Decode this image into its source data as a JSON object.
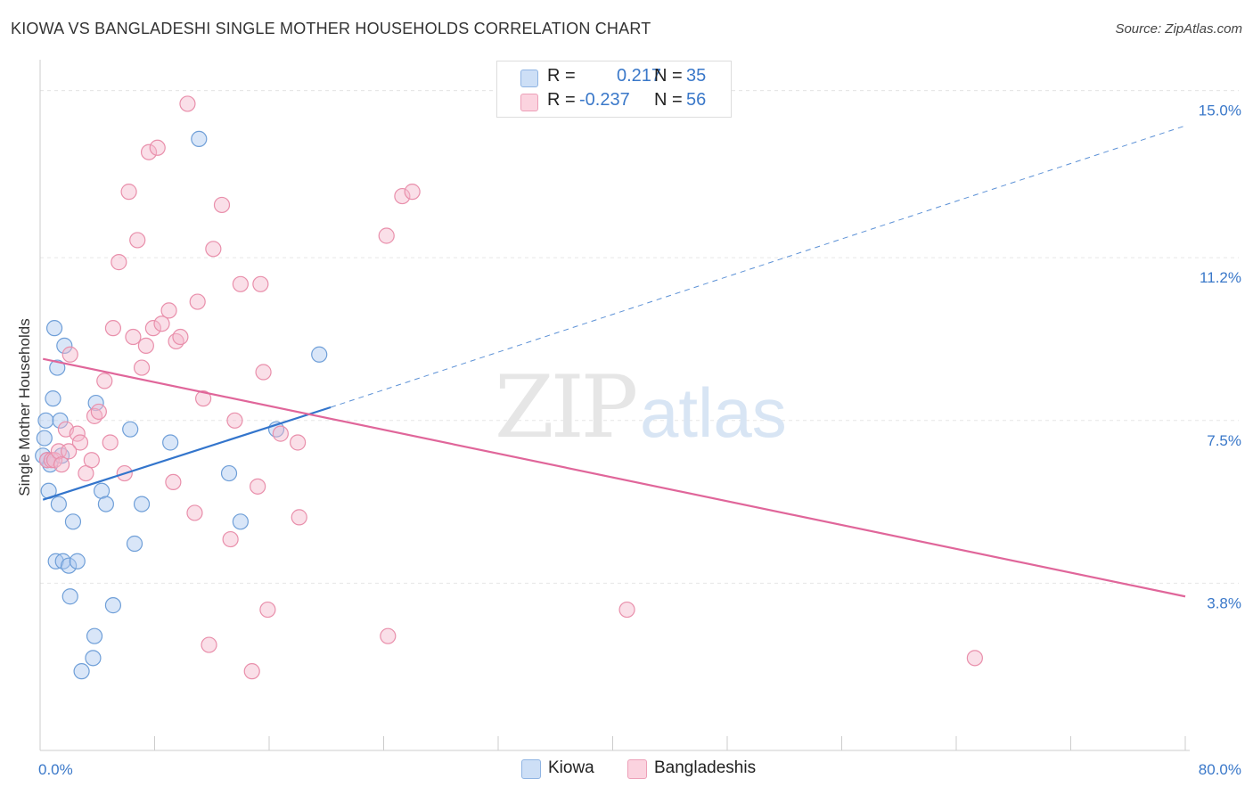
{
  "header": {
    "title": "KIOWA VS BANGLADESHI SINGLE MOTHER HOUSEHOLDS CORRELATION CHART",
    "source": "Source: ZipAtlas.com"
  },
  "watermark": {
    "zip": "ZIP",
    "atlas": "atlas"
  },
  "legend": {
    "rows": [
      {
        "r_label": "R =",
        "r_value": "0.217",
        "n_label": "N =",
        "n_value": "35",
        "color": "#aac8ef"
      },
      {
        "r_label": "R =",
        "r_value": "-0.237",
        "n_label": "N =",
        "n_value": "56",
        "color": "#f5b8cb"
      }
    ]
  },
  "bottom_legend": [
    {
      "label": "Kiowa",
      "color": "#aac8ef"
    },
    {
      "label": "Bangladeshis",
      "color": "#f5b8cb"
    }
  ],
  "chart_data": {
    "type": "scatter",
    "title": "KIOWA VS BANGLADESHI SINGLE MOTHER HOUSEHOLDS CORRELATION CHART",
    "xlabel": "",
    "ylabel": "Single Mother Households",
    "xlim": [
      0,
      80
    ],
    "ylim": [
      0,
      15.6
    ],
    "x_tick_labels": [
      "0.0%",
      "80.0%"
    ],
    "y_tick_labels": [
      "3.8%",
      "7.5%",
      "11.2%",
      "15.0%"
    ],
    "y_ticks": [
      3.8,
      7.5,
      11.2,
      15.0
    ],
    "grid": true,
    "legend_position": "top-center",
    "series": [
      {
        "name": "Kiowa",
        "color": "#aac8ef",
        "stroke": "#6f9fd8",
        "trend": {
          "x": [
            0.2,
            20.3
          ],
          "y": [
            5.7,
            7.8
          ],
          "color": "#3375cc",
          "dashed_extension": {
            "x": [
              20.3,
              80
            ],
            "y": [
              7.8,
              14.2
            ]
          }
        },
        "points": [
          [
            0.2,
            6.7
          ],
          [
            0.3,
            7.1
          ],
          [
            0.4,
            7.5
          ],
          [
            0.6,
            5.9
          ],
          [
            0.7,
            6.5
          ],
          [
            0.9,
            8.0
          ],
          [
            1.0,
            9.6
          ],
          [
            1.1,
            4.3
          ],
          [
            1.2,
            8.7
          ],
          [
            1.3,
            5.6
          ],
          [
            1.4,
            7.5
          ],
          [
            1.5,
            6.7
          ],
          [
            1.6,
            4.3
          ],
          [
            1.7,
            9.2
          ],
          [
            2.0,
            4.2
          ],
          [
            2.1,
            3.5
          ],
          [
            2.3,
            5.2
          ],
          [
            2.6,
            4.3
          ],
          [
            2.9,
            1.8
          ],
          [
            3.7,
            2.1
          ],
          [
            3.8,
            2.6
          ],
          [
            3.9,
            7.9
          ],
          [
            4.3,
            5.9
          ],
          [
            4.6,
            5.6
          ],
          [
            5.1,
            3.3
          ],
          [
            6.3,
            7.3
          ],
          [
            6.6,
            4.7
          ],
          [
            7.1,
            5.6
          ],
          [
            9.1,
            7.0
          ],
          [
            11.1,
            13.9
          ],
          [
            13.2,
            6.3
          ],
          [
            14.0,
            5.2
          ],
          [
            16.5,
            7.3
          ],
          [
            19.5,
            9.0
          ],
          [
            0.5,
            6.6
          ]
        ]
      },
      {
        "name": "Bangladeshis",
        "color": "#f5b8cb",
        "stroke": "#e98fab",
        "trend": {
          "x": [
            0.2,
            80
          ],
          "y": [
            8.9,
            3.5
          ],
          "color": "#e0669a"
        },
        "points": [
          [
            0.5,
            6.6
          ],
          [
            0.8,
            6.6
          ],
          [
            1.0,
            6.6
          ],
          [
            1.3,
            6.8
          ],
          [
            1.5,
            6.5
          ],
          [
            1.8,
            7.3
          ],
          [
            2.1,
            9.0
          ],
          [
            2.6,
            7.2
          ],
          [
            2.8,
            7.0
          ],
          [
            3.2,
            6.3
          ],
          [
            3.6,
            6.6
          ],
          [
            3.8,
            7.6
          ],
          [
            4.1,
            7.7
          ],
          [
            4.5,
            8.4
          ],
          [
            4.9,
            7.0
          ],
          [
            5.1,
            9.6
          ],
          [
            5.5,
            11.1
          ],
          [
            5.9,
            6.3
          ],
          [
            6.2,
            12.7
          ],
          [
            6.5,
            9.4
          ],
          [
            6.8,
            11.6
          ],
          [
            7.1,
            8.7
          ],
          [
            7.4,
            9.2
          ],
          [
            7.6,
            13.6
          ],
          [
            7.9,
            9.6
          ],
          [
            8.2,
            13.7
          ],
          [
            8.5,
            9.7
          ],
          [
            9.0,
            10.0
          ],
          [
            9.3,
            6.1
          ],
          [
            9.5,
            9.3
          ],
          [
            9.8,
            9.4
          ],
          [
            10.3,
            14.7
          ],
          [
            10.8,
            5.4
          ],
          [
            11.0,
            10.2
          ],
          [
            11.4,
            8.0
          ],
          [
            11.8,
            2.4
          ],
          [
            12.1,
            11.4
          ],
          [
            12.7,
            12.4
          ],
          [
            13.3,
            4.8
          ],
          [
            13.6,
            7.5
          ],
          [
            14.0,
            10.6
          ],
          [
            14.8,
            1.8
          ],
          [
            15.2,
            6.0
          ],
          [
            15.4,
            10.6
          ],
          [
            15.6,
            8.6
          ],
          [
            15.9,
            3.2
          ],
          [
            16.8,
            7.2
          ],
          [
            18.0,
            7.0
          ],
          [
            18.1,
            5.3
          ],
          [
            24.2,
            11.7
          ],
          [
            24.3,
            2.6
          ],
          [
            25.3,
            12.6
          ],
          [
            26.0,
            12.7
          ],
          [
            41.0,
            3.2
          ],
          [
            65.3,
            2.1
          ],
          [
            2.0,
            6.8
          ]
        ]
      }
    ]
  }
}
